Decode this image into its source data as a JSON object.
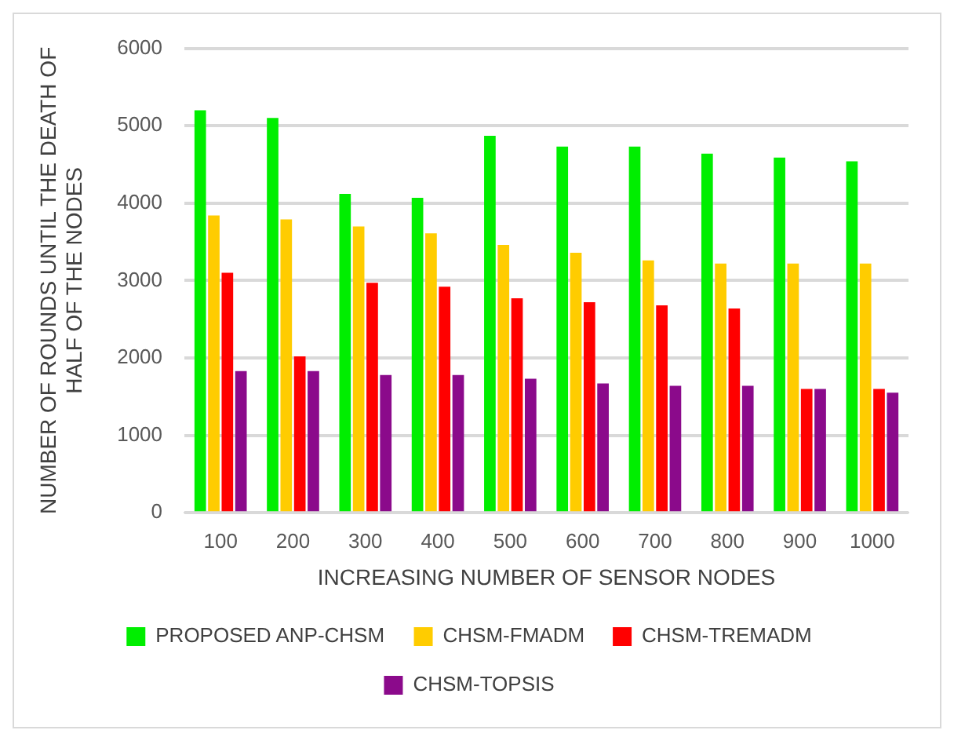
{
  "chart_data": {
    "type": "bar",
    "xlabel": "INCREASING NUMBER OF SENSOR NODES",
    "ylabel": "NUMBER OF ROUNDS UNTIL THE DEATH OF HALF OF THE NODES",
    "categories": [
      "100",
      "200",
      "300",
      "400",
      "500",
      "600",
      "700",
      "800",
      "900",
      "1000"
    ],
    "series": [
      {
        "name": "PROPOSED ANP-CHSM",
        "color": "#00ee00",
        "values": [
          5200,
          5100,
          4120,
          4070,
          4870,
          4730,
          4730,
          4640,
          4590,
          4540
        ]
      },
      {
        "name": "CHSM-FMADM",
        "color": "#ffcc00",
        "values": [
          3840,
          3790,
          3700,
          3610,
          3460,
          3360,
          3260,
          3220,
          3220,
          3220
        ]
      },
      {
        "name": "CHSM-TREMADM",
        "color": "#ff0000",
        "values": [
          3100,
          2020,
          2970,
          2920,
          2770,
          2720,
          2680,
          2640,
          1600,
          1600
        ]
      },
      {
        "name": "CHSM-TOPSIS",
        "color": "#8b0a8b",
        "values": [
          1830,
          1830,
          1780,
          1780,
          1730,
          1670,
          1640,
          1640,
          1600,
          1550
        ]
      }
    ],
    "ylim": [
      0,
      6000
    ],
    "yticks": [
      0,
      1000,
      2000,
      3000,
      4000,
      5000,
      6000
    ],
    "grid": "y",
    "legend": "bottom"
  }
}
